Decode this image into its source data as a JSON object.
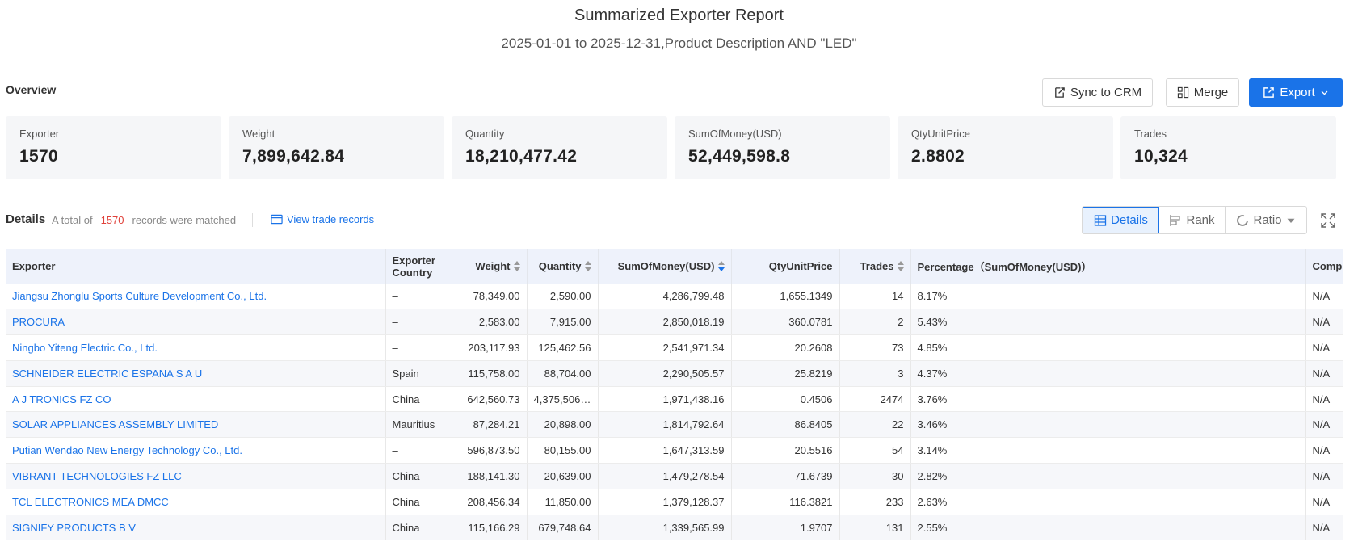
{
  "header": {
    "title": "Summarized Exporter Report",
    "subtitle": "2025-01-01 to 2025-12-31,Product Description AND \"LED\""
  },
  "overview": {
    "label": "Overview",
    "buttons": {
      "sync": "Sync to CRM",
      "merge": "Merge",
      "export": "Export"
    },
    "cards": [
      {
        "label": "Exporter",
        "value": "1570"
      },
      {
        "label": "Weight",
        "value": "7,899,642.84"
      },
      {
        "label": "Quantity",
        "value": "18,210,477.42"
      },
      {
        "label": "SumOfMoney(USD)",
        "value": "52,449,598.8"
      },
      {
        "label": "QtyUnitPrice",
        "value": "2.8802"
      },
      {
        "label": "Trades",
        "value": "10,324"
      }
    ]
  },
  "details": {
    "label": "Details",
    "info_prefix": "A total of",
    "count": "1570",
    "info_suffix": "records were matched",
    "view_link": "View trade records",
    "tabs": {
      "details": "Details",
      "rank": "Rank",
      "ratio": "Ratio"
    }
  },
  "table": {
    "headers": {
      "exporter": "Exporter",
      "country": "Exporter Country",
      "weight": "Weight",
      "quantity": "Quantity",
      "sum": "SumOfMoney(USD)",
      "unitprice": "QtyUnitPrice",
      "trades": "Trades",
      "percentage": "Percentage（SumOfMoney(USD)）",
      "comp": "Comp"
    },
    "rows": [
      {
        "exporter": "Jiangsu Zhonglu Sports Culture Development Co., Ltd.",
        "country": "–",
        "weight": "78,349.00",
        "quantity": "2,590.00",
        "sum": "4,286,799.48",
        "unitprice": "1,655.1349",
        "trades": "14",
        "percentage": "8.17%",
        "comp": "N/A"
      },
      {
        "exporter": "PROCURA",
        "country": "–",
        "weight": "2,583.00",
        "quantity": "7,915.00",
        "sum": "2,850,018.19",
        "unitprice": "360.0781",
        "trades": "2",
        "percentage": "5.43%",
        "comp": "N/A"
      },
      {
        "exporter": "Ningbo Yiteng Electric Co., Ltd.",
        "country": "–",
        "weight": "203,117.93",
        "quantity": "125,462.56",
        "sum": "2,541,971.34",
        "unitprice": "20.2608",
        "trades": "73",
        "percentage": "4.85%",
        "comp": "N/A"
      },
      {
        "exporter": "SCHNEIDER ELECTRIC ESPANA S A U",
        "country": "Spain",
        "weight": "115,758.00",
        "quantity": "88,704.00",
        "sum": "2,290,505.57",
        "unitprice": "25.8219",
        "trades": "3",
        "percentage": "4.37%",
        "comp": "N/A"
      },
      {
        "exporter": "A J TRONICS FZ CO",
        "country": "China",
        "weight": "642,560.73",
        "quantity": "4,375,506....",
        "sum": "1,971,438.16",
        "unitprice": "0.4506",
        "trades": "2474",
        "percentage": "3.76%",
        "comp": "N/A"
      },
      {
        "exporter": "SOLAR APPLIANCES ASSEMBLY LIMITED",
        "country": "Mauritius",
        "weight": "87,284.21",
        "quantity": "20,898.00",
        "sum": "1,814,792.64",
        "unitprice": "86.8405",
        "trades": "22",
        "percentage": "3.46%",
        "comp": "N/A"
      },
      {
        "exporter": "Putian Wendao New Energy Technology Co., Ltd.",
        "country": "–",
        "weight": "596,873.50",
        "quantity": "80,155.00",
        "sum": "1,647,313.59",
        "unitprice": "20.5516",
        "trades": "54",
        "percentage": "3.14%",
        "comp": "N/A"
      },
      {
        "exporter": "VIBRANT TECHNOLOGIES FZ LLC",
        "country": "China",
        "weight": "188,141.30",
        "quantity": "20,639.00",
        "sum": "1,479,278.54",
        "unitprice": "71.6739",
        "trades": "30",
        "percentage": "2.82%",
        "comp": "N/A"
      },
      {
        "exporter": "TCL ELECTRONICS MEA DMCC",
        "country": "China",
        "weight": "208,456.34",
        "quantity": "11,850.00",
        "sum": "1,379,128.37",
        "unitprice": "116.3821",
        "trades": "233",
        "percentage": "2.63%",
        "comp": "N/A"
      },
      {
        "exporter": "SIGNIFY PRODUCTS B V",
        "country": "China",
        "weight": "115,166.29",
        "quantity": "679,748.64",
        "sum": "1,339,565.99",
        "unitprice": "1.9707",
        "trades": "131",
        "percentage": "2.55%",
        "comp": "N/A"
      }
    ]
  },
  "colors": {
    "accent": "#1a73e8",
    "count_red": "#e0413a",
    "header_bg": "#eef2fb",
    "card_bg": "#f5f6f8"
  }
}
